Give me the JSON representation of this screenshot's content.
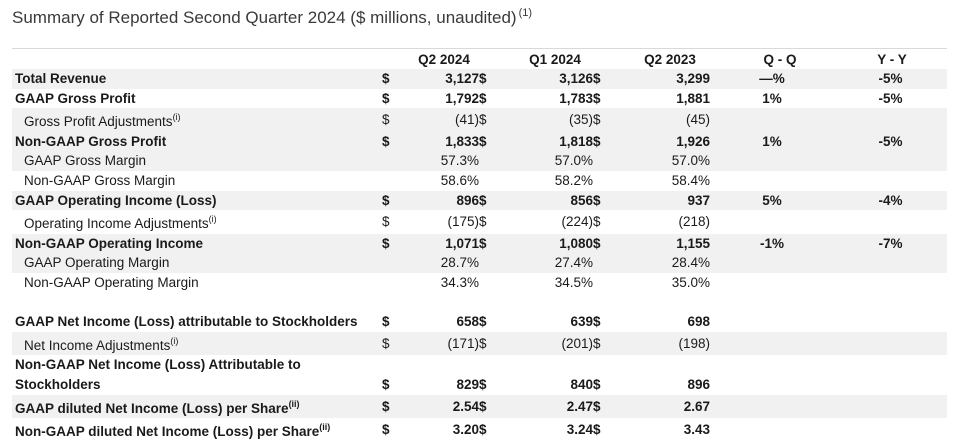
{
  "title": "Summary of Reported Second Quarter 2024 ($ millions, unaudited)",
  "title_note": "(1)",
  "columns": [
    "Q2 2024",
    "Q1 2024",
    "Q2 2023",
    "Q - Q",
    "Y - Y"
  ],
  "rows": [
    {
      "label": "Total Revenue",
      "fn": "",
      "cur1": "$",
      "v1": "3,127",
      "cur2": "$",
      "v2": "3,126",
      "cur3": "$",
      "v3": "3,299",
      "qq": "—%",
      "yy": "-5%"
    },
    {
      "label": "GAAP Gross Profit",
      "fn": "",
      "cur1": "$",
      "v1": "1,792",
      "cur2": "$",
      "v2": "1,783",
      "cur3": "$",
      "v3": "1,881",
      "qq": "1%",
      "yy": "-5%"
    },
    {
      "label": "Gross Profit Adjustments",
      "fn": "(i)",
      "cur1": "$",
      "v1": "(41)",
      "cur2": "$",
      "v2": "(35)",
      "cur3": "$",
      "v3": "(45)",
      "qq": "",
      "yy": ""
    },
    {
      "label": "Non-GAAP Gross Profit",
      "fn": "",
      "cur1": "$",
      "v1": "1,833",
      "cur2": "$",
      "v2": "1,818",
      "cur3": "$",
      "v3": "1,926",
      "qq": "1%",
      "yy": "-5%"
    },
    {
      "label": "GAAP Gross Margin",
      "fn": "",
      "cur1": "",
      "v1": "57.3%",
      "cur2": "",
      "v2": "57.0%",
      "cur3": "",
      "v3": "57.0%",
      "qq": "",
      "yy": ""
    },
    {
      "label": "Non-GAAP Gross Margin",
      "fn": "",
      "cur1": "",
      "v1": "58.6%",
      "cur2": "",
      "v2": "58.2%",
      "cur3": "",
      "v3": "58.4%",
      "qq": "",
      "yy": ""
    },
    {
      "label": "GAAP Operating Income (Loss)",
      "fn": "",
      "cur1": "$",
      "v1": "896",
      "cur2": "$",
      "v2": "856",
      "cur3": "$",
      "v3": "937",
      "qq": "5%",
      "yy": "-4%"
    },
    {
      "label": "Operating Income Adjustments",
      "fn": "(i)",
      "cur1": "$",
      "v1": "(175)",
      "cur2": "$",
      "v2": "(224)",
      "cur3": "$",
      "v3": "(218)",
      "qq": "",
      "yy": ""
    },
    {
      "label": "Non-GAAP Operating Income",
      "fn": "",
      "cur1": "$",
      "v1": "1,071",
      "cur2": "$",
      "v2": "1,080",
      "cur3": "$",
      "v3": "1,155",
      "qq": "-1%",
      "yy": "-7%"
    },
    {
      "label": "GAAP Operating Margin",
      "fn": "",
      "cur1": "",
      "v1": "28.7%",
      "cur2": "",
      "v2": "27.4%",
      "cur3": "",
      "v3": "28.4%",
      "qq": "",
      "yy": ""
    },
    {
      "label": "Non-GAAP Operating Margin",
      "fn": "",
      "cur1": "",
      "v1": "34.3%",
      "cur2": "",
      "v2": "34.5%",
      "cur3": "",
      "v3": "35.0%",
      "qq": "",
      "yy": ""
    },
    {
      "label": "GAAP Net Income (Loss) attributable to Stockholders",
      "fn": "",
      "cur1": "$",
      "v1": "658",
      "cur2": "$",
      "v2": "639",
      "cur3": "$",
      "v3": "698",
      "qq": "",
      "yy": ""
    },
    {
      "label": "Net Income Adjustments",
      "fn": "(i)",
      "cur1": "$",
      "v1": "(171)",
      "cur2": "$",
      "v2": "(201)",
      "cur3": "$",
      "v3": "(198)",
      "qq": "",
      "yy": ""
    },
    {
      "label": "Non-GAAP Net Income (Loss) Attributable to Stockholders",
      "fn": "",
      "cur1": "$",
      "v1": "829",
      "cur2": "$",
      "v2": "840",
      "cur3": "$",
      "v3": "896",
      "qq": "",
      "yy": ""
    },
    {
      "label": "GAAP diluted Net Income (Loss) per Share",
      "fn": "(ii)",
      "cur1": "$",
      "v1": "2.54",
      "cur2": "$",
      "v2": "2.47",
      "cur3": "$",
      "v3": "2.67",
      "qq": "",
      "yy": ""
    },
    {
      "label": "Non-GAAP diluted Net Income (Loss) per Share",
      "fn": "(ii)",
      "cur1": "$",
      "v1": "3.20",
      "cur2": "$",
      "v2": "3.24",
      "cur3": "$",
      "v3": "3.43",
      "qq": "",
      "yy": ""
    }
  ]
}
